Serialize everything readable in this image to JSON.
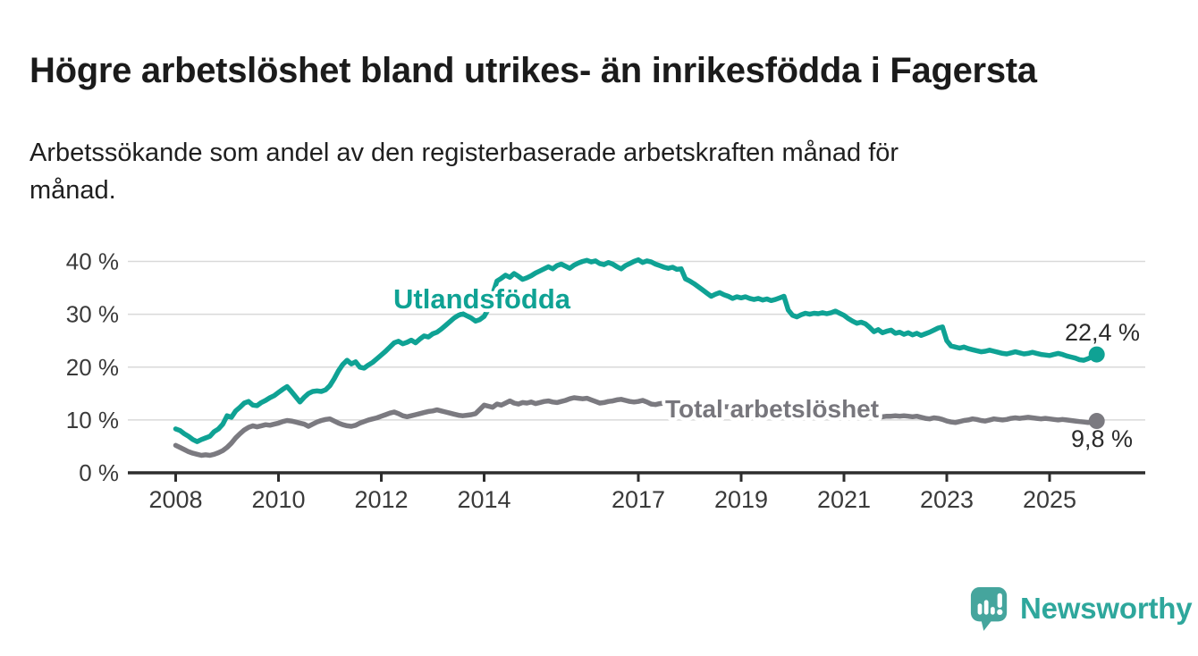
{
  "header": {
    "title": "Högre arbetslöshet bland utrikes- än inrikesfödda i Fagersta",
    "subtitle": "Arbetssökande som andel av den registerbaserade arbetskraften månad för månad."
  },
  "chart_data": {
    "type": "line",
    "title": "Högre arbetslöshet bland utrikes- än inrikesfödda i Fagersta",
    "xlabel": "",
    "ylabel": "Arbetssökande som andel av den registerbaserade arbetskraften",
    "grid": true,
    "legend_position": "inline-labels-on-lines",
    "x_axis": {
      "unit": "year-month",
      "start_year": 2008.0,
      "step_years": 0.0833333,
      "end_year": 2025.9167,
      "ticks": [
        2008,
        2010,
        2012,
        2014,
        2017,
        2019,
        2021,
        2023,
        2025
      ],
      "tick_labels": [
        "2008",
        "2010",
        "2012",
        "2014",
        "2017",
        "2019",
        "2021",
        "2023",
        "2025"
      ]
    },
    "y_axis": {
      "ticks": [
        0,
        10,
        20,
        30,
        40
      ],
      "tick_labels": [
        "0 %",
        "10 %",
        "20 %",
        "30 %",
        "40 %"
      ],
      "range": [
        0,
        42
      ],
      "unit": "%"
    },
    "series": [
      {
        "name": "Utlandsfödda",
        "color": "#0fa294",
        "end_label": "22,4 %",
        "end_value": 22.4,
        "values": [
          8.3,
          8.0,
          7.4,
          6.9,
          6.3,
          5.9,
          6.3,
          6.6,
          6.9,
          7.8,
          8.3,
          9.2,
          10.8,
          10.5,
          11.7,
          12.4,
          13.2,
          13.5,
          12.8,
          12.7,
          13.3,
          13.7,
          14.2,
          14.6,
          15.2,
          15.8,
          16.3,
          15.4,
          14.4,
          13.4,
          14.3,
          15.0,
          15.4,
          15.5,
          15.4,
          15.7,
          16.5,
          17.8,
          19.3,
          20.5,
          21.3,
          20.6,
          21.0,
          20.0,
          19.8,
          20.4,
          20.9,
          21.6,
          22.3,
          23.0,
          23.8,
          24.6,
          24.9,
          24.4,
          24.7,
          25.1,
          24.6,
          25.3,
          25.9,
          25.7,
          26.3,
          26.6,
          27.2,
          27.9,
          28.6,
          29.3,
          29.8,
          30.1,
          29.7,
          29.3,
          28.7,
          29.0,
          29.6,
          31.0,
          33.8,
          36.3,
          36.8,
          37.4,
          37.0,
          37.7,
          37.2,
          36.6,
          36.9,
          37.3,
          37.8,
          38.2,
          38.6,
          39.0,
          38.6,
          39.2,
          39.5,
          39.1,
          38.7,
          39.3,
          39.7,
          40.0,
          40.2,
          39.9,
          40.1,
          39.6,
          39.4,
          39.8,
          39.5,
          39.0,
          38.6,
          39.2,
          39.6,
          40.0,
          40.3,
          39.8,
          40.1,
          39.9,
          39.5,
          39.2,
          38.9,
          38.7,
          38.9,
          38.5,
          38.6,
          36.7,
          36.3,
          35.8,
          35.2,
          34.6,
          34.0,
          33.4,
          33.8,
          34.1,
          33.7,
          33.4,
          33.0,
          33.3,
          33.1,
          33.3,
          33.0,
          32.8,
          33.0,
          32.7,
          32.9,
          32.6,
          32.8,
          33.1,
          33.4,
          30.8,
          29.8,
          29.5,
          29.9,
          30.2,
          30.0,
          30.2,
          30.1,
          30.3,
          30.1,
          30.3,
          30.6,
          30.2,
          29.8,
          29.2,
          28.7,
          28.3,
          28.5,
          28.2,
          27.5,
          26.7,
          27.1,
          26.5,
          26.8,
          27.0,
          26.4,
          26.6,
          26.2,
          26.5,
          26.1,
          26.4,
          26.0,
          26.3,
          26.6,
          27.0,
          27.4,
          27.6,
          25.0,
          24.0,
          23.8,
          23.6,
          23.8,
          23.5,
          23.3,
          23.1,
          22.9,
          23.0,
          23.2,
          23.0,
          22.8,
          22.6,
          22.5,
          22.7,
          22.9,
          22.7,
          22.5,
          22.6,
          22.8,
          22.6,
          22.4,
          22.3,
          22.2,
          22.4,
          22.6,
          22.4,
          22.1,
          21.9,
          21.7,
          21.4,
          21.3,
          21.6,
          22.0,
          22.4
        ]
      },
      {
        "name": "Total arbetslöshet",
        "color": "#7b7a80",
        "end_label": "9,8 %",
        "end_value": 9.8,
        "values": [
          5.2,
          4.8,
          4.4,
          4.0,
          3.7,
          3.5,
          3.3,
          3.4,
          3.3,
          3.5,
          3.8,
          4.2,
          4.8,
          5.6,
          6.6,
          7.4,
          8.1,
          8.6,
          8.9,
          8.7,
          8.9,
          9.1,
          9.0,
          9.2,
          9.4,
          9.7,
          9.9,
          9.8,
          9.6,
          9.4,
          9.2,
          8.8,
          9.2,
          9.6,
          9.9,
          10.1,
          10.2,
          9.8,
          9.4,
          9.1,
          8.9,
          8.8,
          9.0,
          9.4,
          9.7,
          10.0,
          10.2,
          10.4,
          10.7,
          11.0,
          11.3,
          11.5,
          11.2,
          10.8,
          10.6,
          10.8,
          11.0,
          11.2,
          11.4,
          11.6,
          11.7,
          11.9,
          11.7,
          11.5,
          11.3,
          11.1,
          10.9,
          10.8,
          10.9,
          11.0,
          11.2,
          12.0,
          12.8,
          12.6,
          12.4,
          13.0,
          12.8,
          13.2,
          13.6,
          13.2,
          13.0,
          13.3,
          13.2,
          13.4,
          13.1,
          13.3,
          13.5,
          13.6,
          13.4,
          13.3,
          13.5,
          13.7,
          14.0,
          14.2,
          14.1,
          14.0,
          14.1,
          13.8,
          13.5,
          13.2,
          13.3,
          13.5,
          13.6,
          13.8,
          13.9,
          13.7,
          13.5,
          13.4,
          13.5,
          13.7,
          13.4,
          13.0,
          12.9,
          13.1,
          13.2,
          13.4,
          13.5,
          13.6,
          13.3,
          13.1,
          13.0,
          12.9,
          12.9,
          12.8,
          12.7,
          12.7,
          12.6,
          12.6,
          12.5,
          12.5,
          12.4,
          12.4,
          12.4,
          12.3,
          12.2,
          12.2,
          12.1,
          12.0,
          12.0,
          11.9,
          11.9,
          12.0,
          12.0,
          12.1,
          12.1,
          12.2,
          12.4,
          12.4,
          12.3,
          12.2,
          12.2,
          12.1,
          12.0,
          11.9,
          11.8,
          11.7,
          11.6,
          11.4,
          11.2,
          11.0,
          10.9,
          10.8,
          10.7,
          10.6,
          10.5,
          10.6,
          10.7,
          10.7,
          10.8,
          10.7,
          10.8,
          10.7,
          10.6,
          10.7,
          10.5,
          10.3,
          10.2,
          10.4,
          10.3,
          10.1,
          9.8,
          9.6,
          9.5,
          9.7,
          9.9,
          10.0,
          10.2,
          10.1,
          9.9,
          9.8,
          10.0,
          10.2,
          10.1,
          10.0,
          10.1,
          10.3,
          10.4,
          10.3,
          10.4,
          10.5,
          10.4,
          10.3,
          10.2,
          10.3,
          10.2,
          10.1,
          10.0,
          10.1,
          10.0,
          9.9,
          9.8,
          9.7,
          9.6,
          9.5,
          9.6,
          9.8
        ]
      }
    ]
  },
  "branding": {
    "logo_text": "Newsworthy",
    "logo_icon": "speech-bubble-bar-chart-icon",
    "brand_color": "#2ea79c"
  },
  "colors": {
    "background": "#ffffff",
    "title_text": "#1b1b1b",
    "axis_line": "#2d2d2d",
    "axis_label": "#3a3a3a",
    "gridline": "#d9d9d9",
    "series_teal": "#0fa294",
    "series_gray": "#7b7a80",
    "value_label": "#2b2b2b",
    "logo_bubble": "#45a59d"
  }
}
